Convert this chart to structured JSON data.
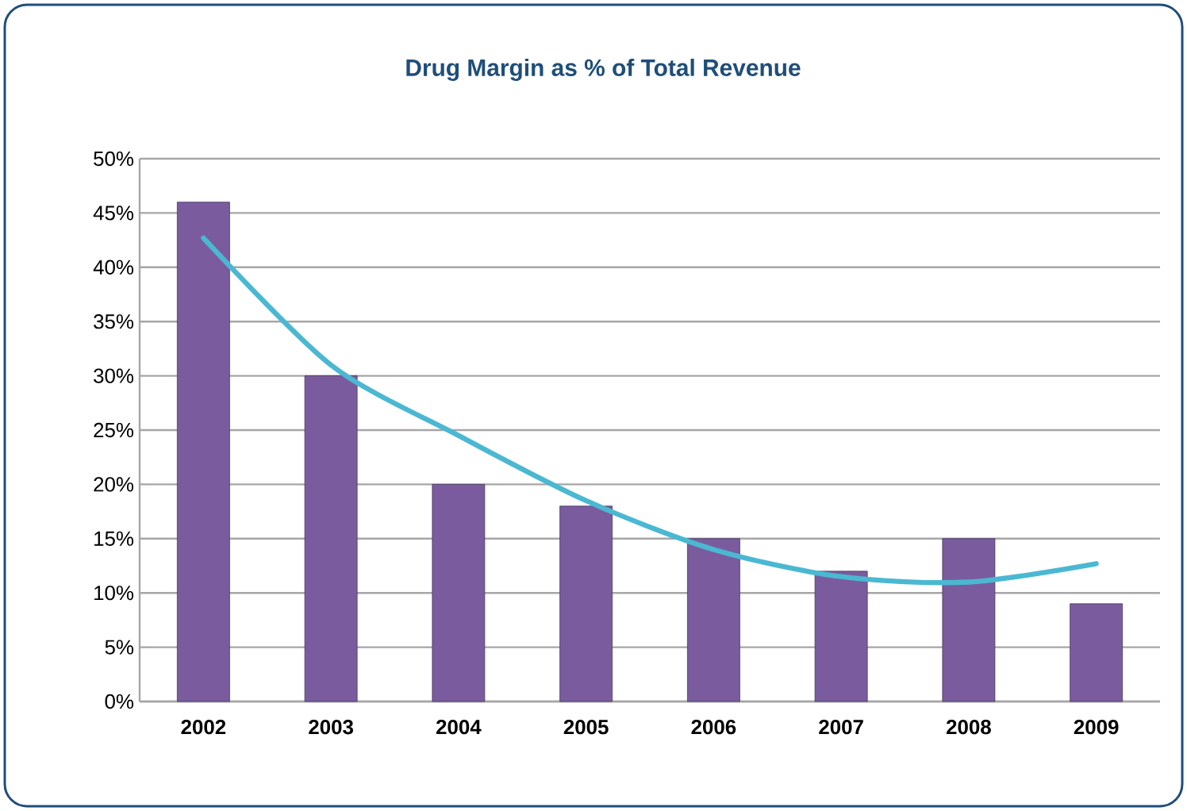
{
  "chart_data": {
    "type": "bar",
    "title": "Drug Margin as % of Total Revenue",
    "categories": [
      "2002",
      "2003",
      "2004",
      "2005",
      "2006",
      "2007",
      "2008",
      "2009"
    ],
    "series": [
      {
        "color": "#7a5c9e",
        "values": [
          46,
          30,
          20,
          18,
          15,
          12,
          15,
          9
        ]
      },
      {
        "type": "line",
        "color": "#4bb8d2",
        "values": [
          42.7,
          31,
          24.5,
          18.5,
          14,
          11.5,
          11,
          12.7
        ]
      }
    ],
    "ylim": [
      0,
      50
    ],
    "yticks": [
      {
        "value": 0,
        "label": "0%"
      },
      {
        "value": 5,
        "label": "5%"
      },
      {
        "value": 10,
        "label": "10%"
      },
      {
        "value": 15,
        "label": "15%"
      },
      {
        "value": 20,
        "label": "20%"
      },
      {
        "value": 25,
        "label": "25%"
      },
      {
        "value": 30,
        "label": "30%"
      },
      {
        "value": 35,
        "label": "35%"
      },
      {
        "value": 40,
        "label": "40%"
      },
      {
        "value": 45,
        "label": "45%"
      },
      {
        "value": 50,
        "label": "50%"
      }
    ],
    "grid": "y"
  }
}
